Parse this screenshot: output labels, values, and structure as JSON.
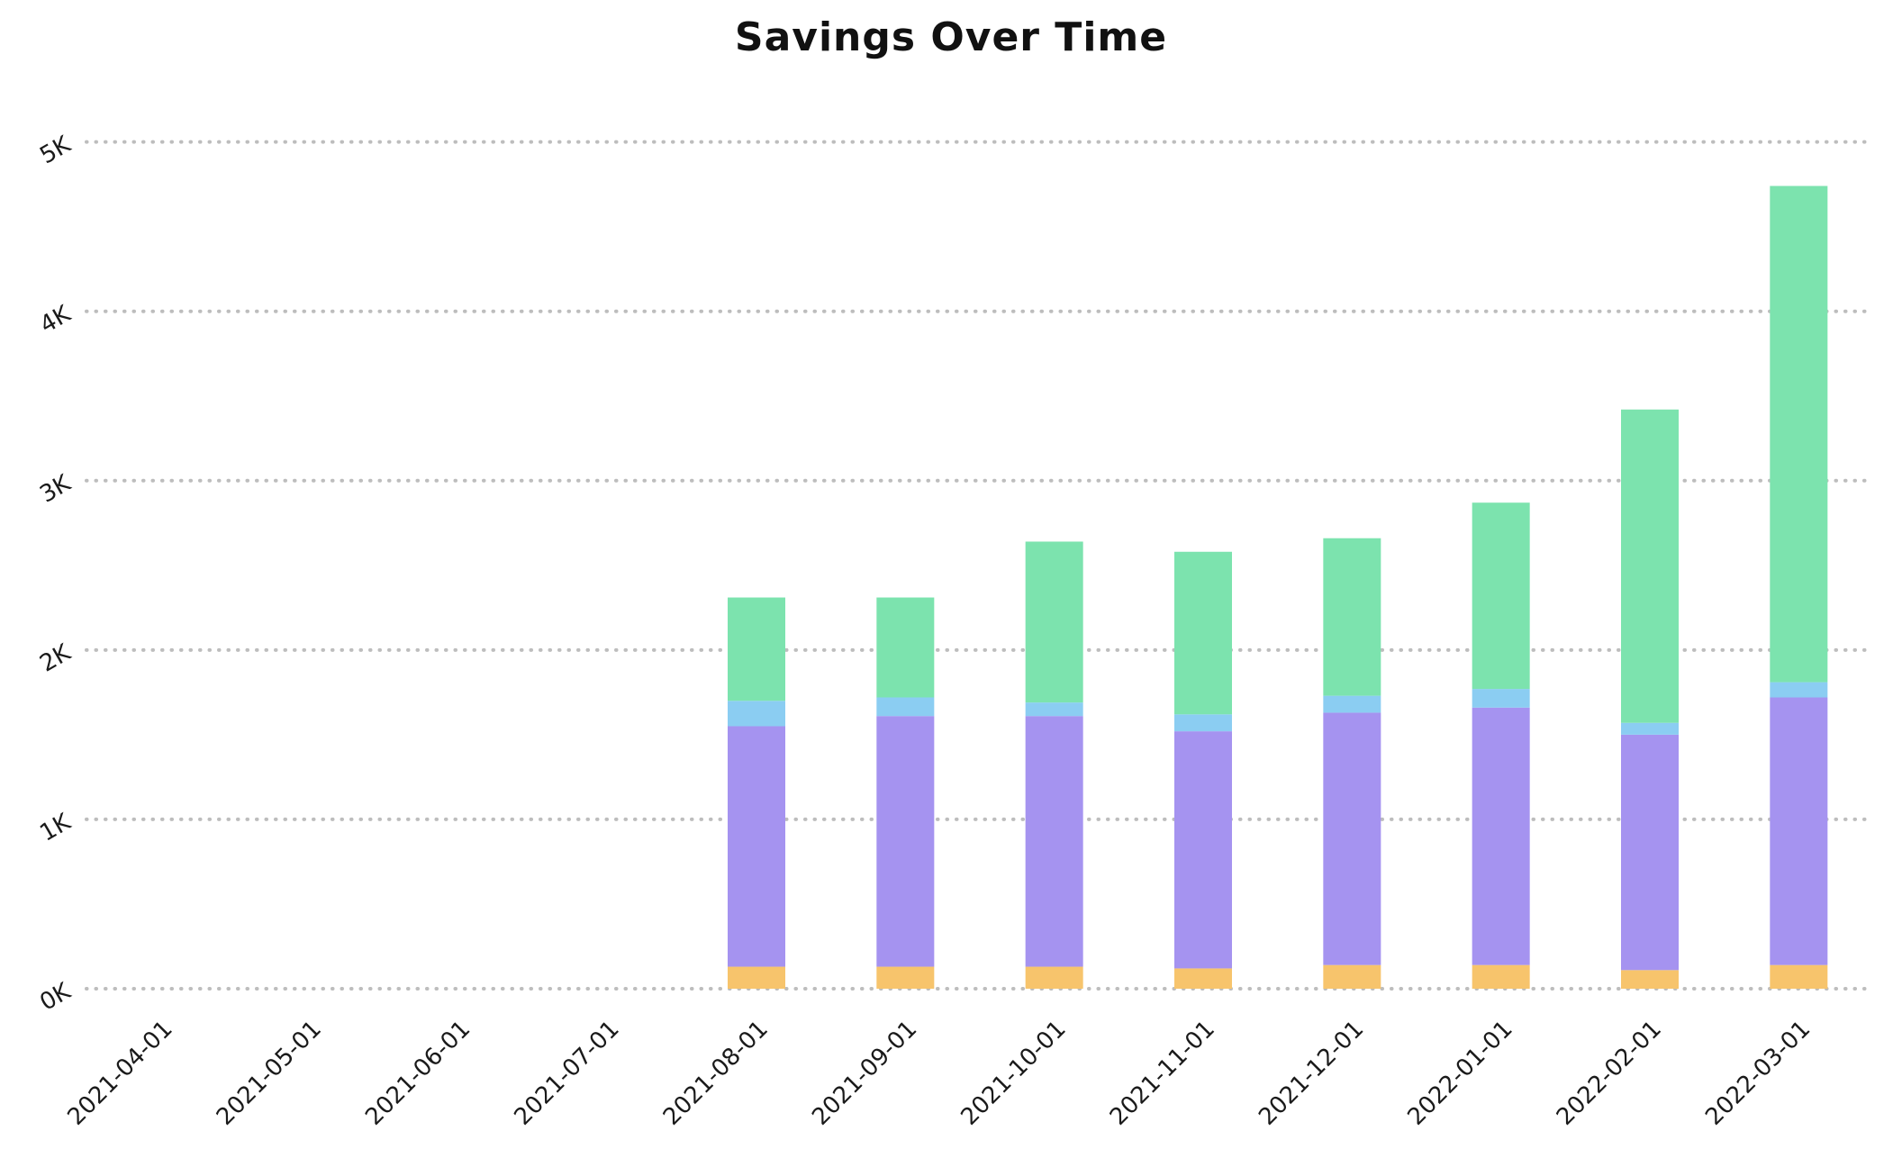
{
  "chart_data": {
    "type": "bar",
    "stacked": true,
    "title": "Savings Over Time",
    "xlabel": "",
    "ylabel": "",
    "legend": "none",
    "grid": "dotted-horizontal",
    "ylim": [
      0,
      5200
    ],
    "y_ticks": {
      "values": [
        0,
        1000,
        2000,
        3000,
        4000,
        5000
      ],
      "labels": [
        "0K",
        "1K",
        "2K",
        "3K",
        "4K",
        "5K"
      ]
    },
    "categories": [
      "2021-04-01",
      "2021-05-01",
      "2021-06-01",
      "2021-07-01",
      "2021-08-01",
      "2021-09-01",
      "2021-10-01",
      "2021-11-01",
      "2021-12-01",
      "2022-01-01",
      "2022-02-01",
      "2022-03-01"
    ],
    "series": [
      {
        "name": "segment-orange",
        "color": "#f7c46c",
        "values": [
          0,
          0,
          0,
          0,
          130,
          130,
          130,
          120,
          140,
          140,
          110,
          140
        ]
      },
      {
        "name": "segment-purple",
        "color": "#a593f0",
        "values": [
          0,
          0,
          0,
          0,
          1420,
          1480,
          1480,
          1400,
          1490,
          1520,
          1390,
          1580
        ]
      },
      {
        "name": "segment-blue",
        "color": "#8bcdf2",
        "values": [
          0,
          0,
          0,
          0,
          150,
          110,
          80,
          100,
          100,
          110,
          70,
          90
        ]
      },
      {
        "name": "segment-green",
        "color": "#7ce3ae",
        "values": [
          0,
          0,
          0,
          0,
          610,
          590,
          950,
          960,
          930,
          1100,
          1850,
          2930
        ]
      }
    ],
    "totals": [
      0,
      0,
      0,
      0,
      2310,
      2310,
      2640,
      2580,
      2660,
      2870,
      3420,
      4740
    ],
    "gridline_color": "#bdbdbd",
    "background_color": "#ffffff"
  }
}
